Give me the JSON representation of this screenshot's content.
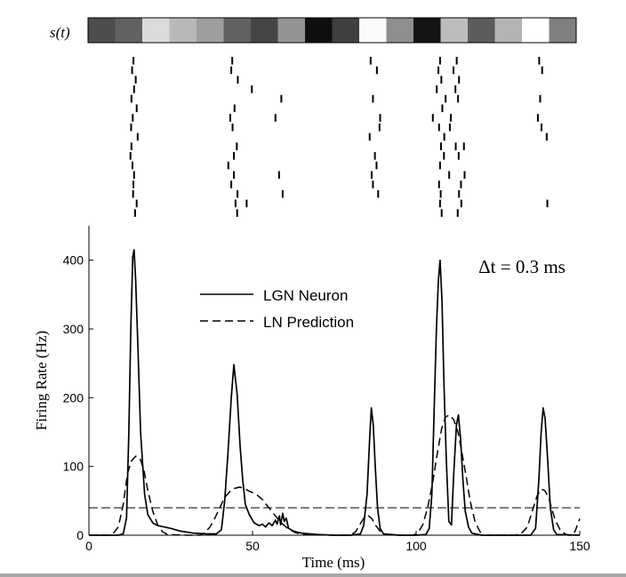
{
  "stimulus": {
    "label": "s(t)",
    "gray_levels": [
      0.3,
      0.38,
      0.86,
      0.72,
      0.62,
      0.38,
      0.27,
      0.58,
      0.06,
      0.25,
      0.98,
      0.56,
      0.08,
      0.74,
      0.36,
      0.7,
      1.0,
      0.5
    ]
  },
  "raster": {
    "trials": [
      [
        13.6,
        43.8,
        86.1,
        107.3,
        112.4,
        137.6
      ],
      [
        13.2,
        43.5,
        88.0,
        106.8,
        111.4,
        138.5
      ],
      [
        14.3,
        45.5,
        107.7,
        113.1
      ],
      [
        13.8,
        49.8,
        106.3,
        112.0
      ],
      [
        13.0,
        58.8,
        86.8,
        109.0,
        112.8,
        137.9
      ],
      [
        14.6,
        44.5,
        108.0
      ],
      [
        13.4,
        43.2,
        57.0,
        89.0,
        105.1,
        110.6,
        137.2
      ],
      [
        12.9,
        43.9,
        88.8,
        107.0,
        110.3,
        138.3
      ],
      [
        14.9,
        85.8,
        108.6,
        139.9
      ],
      [
        13.0,
        45.2,
        107.6,
        112.1,
        114.6
      ],
      [
        12.7,
        44.3,
        87.4,
        108.5,
        113.0
      ],
      [
        13.3,
        42.6,
        87.9,
        107.3
      ],
      [
        13.8,
        44.3,
        58.1,
        86.4,
        110.1,
        114.8
      ],
      [
        13.6,
        43.5,
        86.8,
        107.0,
        113.7
      ],
      [
        13.5,
        45.4,
        59.2,
        88.4,
        107.5,
        113.1
      ],
      [
        14.6,
        44.8,
        48.2,
        107.3,
        113.8,
        140.1
      ],
      [
        14.1,
        45.3,
        107.8,
        112.7
      ]
    ]
  },
  "chart_data": {
    "type": "line",
    "xlabel": "Time (ms)",
    "ylabel": "Firing Rate (Hz)",
    "xlim": [
      0,
      150
    ],
    "ylim": [
      0,
      450
    ],
    "xticks": [
      0,
      50,
      100,
      150
    ],
    "yticks": [
      0,
      100,
      200,
      300,
      400
    ],
    "annotation": "Δt = 0.3 ms",
    "legend": {
      "placement": "upper-center"
    },
    "series": [
      {
        "name": "LGN Neuron",
        "style": "solid",
        "points": [
          [
            0,
            0
          ],
          [
            9,
            0
          ],
          [
            10.5,
            2
          ],
          [
            11.5,
            25
          ],
          [
            12.2,
            150
          ],
          [
            12.8,
            300
          ],
          [
            13.4,
            405
          ],
          [
            13.8,
            415
          ],
          [
            14.3,
            370
          ],
          [
            15,
            270
          ],
          [
            15.8,
            150
          ],
          [
            17,
            60
          ],
          [
            18,
            30
          ],
          [
            19.5,
            18
          ],
          [
            21,
            14
          ],
          [
            23,
            12
          ],
          [
            25,
            10
          ],
          [
            28,
            6
          ],
          [
            32,
            3
          ],
          [
            36,
            2
          ],
          [
            39,
            2
          ],
          [
            40.5,
            8
          ],
          [
            41.5,
            50
          ],
          [
            42.5,
            120
          ],
          [
            43.5,
            200
          ],
          [
            44.3,
            248
          ],
          [
            45.3,
            205
          ],
          [
            46.2,
            130
          ],
          [
            47,
            80
          ],
          [
            47.8,
            45
          ],
          [
            49,
            30
          ],
          [
            50.5,
            18
          ],
          [
            52,
            14
          ],
          [
            53,
            16
          ],
          [
            54,
            12
          ],
          [
            55,
            18
          ],
          [
            56,
            14
          ],
          [
            57,
            22
          ],
          [
            57.5,
            16
          ],
          [
            58.2,
            28
          ],
          [
            58.6,
            15
          ],
          [
            59.2,
            32
          ],
          [
            59.7,
            20
          ],
          [
            60.3,
            25
          ],
          [
            61,
            10
          ],
          [
            62.5,
            6
          ],
          [
            65,
            3
          ],
          [
            70,
            1
          ],
          [
            75,
            0
          ],
          [
            80,
            0
          ],
          [
            83,
            2
          ],
          [
            84,
            15
          ],
          [
            85,
            60
          ],
          [
            85.8,
            140
          ],
          [
            86.3,
            185
          ],
          [
            86.9,
            160
          ],
          [
            87.5,
            100
          ],
          [
            88.2,
            40
          ],
          [
            89,
            10
          ],
          [
            90,
            2
          ],
          [
            95,
            0
          ],
          [
            100,
            0
          ],
          [
            103,
            1
          ],
          [
            104,
            10
          ],
          [
            104.8,
            60
          ],
          [
            105.5,
            180
          ],
          [
            106.2,
            300
          ],
          [
            106.8,
            370
          ],
          [
            107.3,
            400
          ],
          [
            107.9,
            340
          ],
          [
            108.5,
            220
          ],
          [
            109.2,
            110
          ],
          [
            110,
            20
          ],
          [
            110.8,
            15
          ],
          [
            111.5,
            90
          ],
          [
            112.3,
            160
          ],
          [
            112.9,
            175
          ],
          [
            113.6,
            140
          ],
          [
            114.3,
            80
          ],
          [
            115,
            35
          ],
          [
            116,
            12
          ],
          [
            117,
            3
          ],
          [
            120,
            0
          ],
          [
            135,
            0
          ],
          [
            136.5,
            10
          ],
          [
            137.5,
            80
          ],
          [
            138.2,
            150
          ],
          [
            138.8,
            185
          ],
          [
            139.4,
            170
          ],
          [
            140.2,
            110
          ],
          [
            141,
            40
          ],
          [
            142,
            8
          ],
          [
            143,
            1
          ],
          [
            150,
            0
          ]
        ]
      },
      {
        "name": "LN Prediction",
        "style": "dashed",
        "points": [
          [
            0,
            0
          ],
          [
            6,
            0
          ],
          [
            7.5,
            3
          ],
          [
            9,
            12
          ],
          [
            10.5,
            45
          ],
          [
            11.8,
            90
          ],
          [
            13,
            108
          ],
          [
            14.3,
            115
          ],
          [
            15.6,
            112
          ],
          [
            16.8,
            95
          ],
          [
            18,
            65
          ],
          [
            19.5,
            35
          ],
          [
            21,
            15
          ],
          [
            22.5,
            5
          ],
          [
            24,
            1
          ],
          [
            30,
            0
          ],
          [
            34,
            0
          ],
          [
            35.5,
            4
          ],
          [
            37,
            12
          ],
          [
            38.5,
            25
          ],
          [
            40,
            40
          ],
          [
            41.5,
            55
          ],
          [
            43,
            63
          ],
          [
            44.5,
            68
          ],
          [
            46,
            70
          ],
          [
            47.5,
            68
          ],
          [
            49,
            64
          ],
          [
            51,
            60
          ],
          [
            53,
            52
          ],
          [
            55,
            40
          ],
          [
            57,
            28
          ],
          [
            59,
            17
          ],
          [
            61,
            9
          ],
          [
            63,
            4
          ],
          [
            65,
            1
          ],
          [
            75,
            0
          ],
          [
            80,
            0
          ],
          [
            81.5,
            5
          ],
          [
            83,
            17
          ],
          [
            84.3,
            27
          ],
          [
            85.5,
            28
          ],
          [
            86.5,
            24
          ],
          [
            87.5,
            15
          ],
          [
            89,
            6
          ],
          [
            90.5,
            1
          ],
          [
            95,
            0
          ],
          [
            99,
            0
          ],
          [
            100.5,
            3
          ],
          [
            102,
            15
          ],
          [
            103.5,
            40
          ],
          [
            105,
            75
          ],
          [
            106.5,
            120
          ],
          [
            107.8,
            155
          ],
          [
            109,
            172
          ],
          [
            110.2,
            175
          ],
          [
            111.5,
            168
          ],
          [
            112.8,
            150
          ],
          [
            114,
            120
          ],
          [
            115.3,
            85
          ],
          [
            116.5,
            50
          ],
          [
            118,
            20
          ],
          [
            119.5,
            5
          ],
          [
            121,
            0
          ],
          [
            130,
            0
          ],
          [
            132,
            2
          ],
          [
            134,
            12
          ],
          [
            135.5,
            35
          ],
          [
            137,
            58
          ],
          [
            138.2,
            67
          ],
          [
            139.3,
            65
          ],
          [
            140.5,
            55
          ],
          [
            141.5,
            38
          ],
          [
            142.5,
            22
          ],
          [
            144,
            8
          ],
          [
            145.5,
            2
          ],
          [
            146.5,
            0
          ],
          [
            147.5,
            0
          ],
          [
            148.5,
            5
          ],
          [
            149.3,
            15
          ],
          [
            150,
            24
          ]
        ]
      },
      {
        "name": "",
        "style": "dashed-threshold",
        "points": [
          [
            0,
            40
          ],
          [
            150,
            40
          ]
        ]
      }
    ]
  }
}
